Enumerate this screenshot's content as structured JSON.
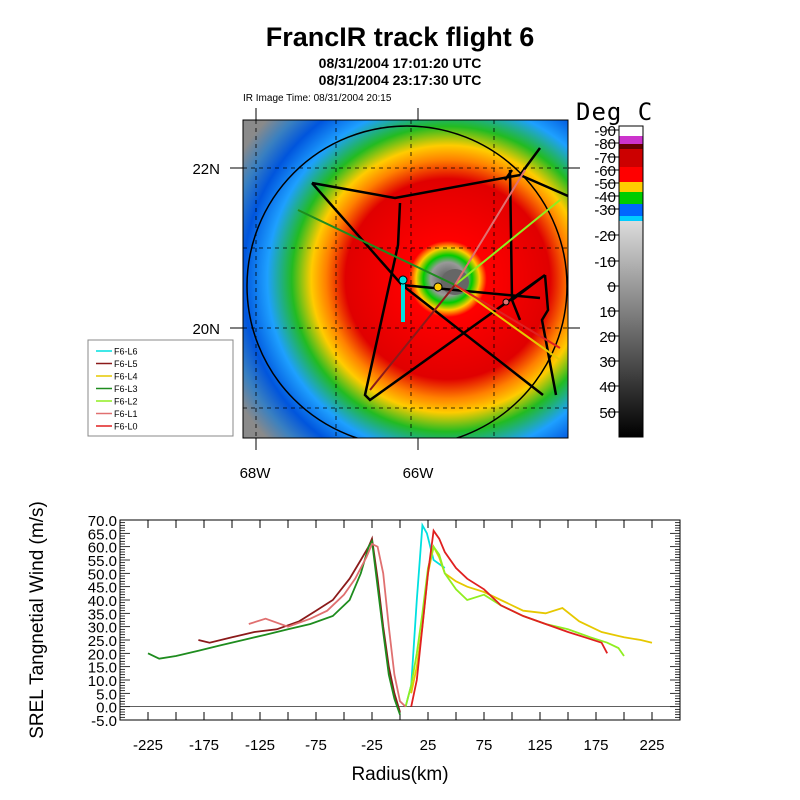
{
  "header": {
    "title": "FrancIR track flight 6",
    "time_start": "08/31/2004 17:01:20 UTC",
    "time_end": "08/31/2004 23:17:30 UTC",
    "ir_image_time": "IR Image Time: 08/31/2004 20:15"
  },
  "map": {
    "lat_labels": [
      "22N",
      "20N"
    ],
    "lon_labels": [
      "68W",
      "66W"
    ],
    "colorbar": {
      "title": "Deg C",
      "labels": [
        "-90",
        "-80",
        "-70",
        "-60",
        "-50",
        "-40",
        "-30",
        "-20",
        "-10",
        "0",
        "10",
        "20",
        "30",
        "40",
        "50"
      ],
      "colors": [
        "#ffffff",
        "#cc33cc",
        "#660000",
        "#cc0000",
        "#ff0000",
        "#ffcc00",
        "#00cc00",
        "#0066ff",
        "#00ccff"
      ]
    },
    "legend": [
      {
        "label": "F6-L6",
        "color": "#00e0e0"
      },
      {
        "label": "F6-L5",
        "color": "#8b1a1a"
      },
      {
        "label": "F6-L4",
        "color": "#e6c800"
      },
      {
        "label": "F6-L3",
        "color": "#1e8c1e"
      },
      {
        "label": "F6-L2",
        "color": "#90ee20"
      },
      {
        "label": "F6-L1",
        "color": "#e07070"
      },
      {
        "label": "F6-L0",
        "color": "#e02020"
      }
    ]
  },
  "chart_data": {
    "type": "line",
    "xlabel": "Radius(km)",
    "ylabel": "SREL Tangnetial Wind (m/s)",
    "xlim": [
      -250,
      250
    ],
    "ylim": [
      -5,
      70
    ],
    "xticks": [
      "-225",
      "-175",
      "-125",
      "-75",
      "-25",
      "25",
      "75",
      "125",
      "175",
      "225"
    ],
    "yticks": [
      "70.0",
      "65.0",
      "60.0",
      "55.0",
      "50.0",
      "45.0",
      "40.0",
      "35.0",
      "30.0",
      "25.0",
      "20.0",
      "15.0",
      "10.0",
      "5.0",
      "0.0",
      "-5.0"
    ],
    "series": [
      {
        "name": "F6-L6",
        "color": "#00e0e0",
        "x": [
          5,
          10,
          15,
          20,
          24,
          30,
          40
        ],
        "y": [
          0,
          8,
          40,
          68,
          65,
          55,
          52
        ]
      },
      {
        "name": "F6-L5",
        "color": "#8b1a1a",
        "x": [
          -180,
          -170,
          -150,
          -130,
          -110,
          -90,
          -75,
          -60,
          -45,
          -35,
          -28,
          -25,
          -20,
          -15,
          -10,
          -5,
          0
        ],
        "y": [
          25,
          24,
          26,
          28,
          29,
          32,
          36,
          40,
          48,
          55,
          60,
          63,
          48,
          30,
          15,
          5,
          -2
        ]
      },
      {
        "name": "F6-L4",
        "color": "#e6c800",
        "x": [
          10,
          15,
          20,
          25,
          30,
          35,
          40,
          50,
          60,
          75,
          90,
          110,
          130,
          145,
          160,
          180,
          200,
          215,
          225
        ],
        "y": [
          5,
          15,
          30,
          50,
          60,
          56,
          50,
          47,
          45,
          43,
          40,
          36,
          35,
          37,
          32,
          28,
          26,
          25,
          24
        ]
      },
      {
        "name": "F6-L3",
        "color": "#1e8c1e",
        "x": [
          -225,
          -215,
          -200,
          -180,
          -160,
          -140,
          -120,
          -100,
          -80,
          -60,
          -45,
          -35,
          -28,
          -25,
          -20,
          -15,
          -10,
          -5,
          0
        ],
        "y": [
          20,
          18,
          19,
          21,
          23,
          25,
          27,
          29,
          31,
          34,
          40,
          50,
          60,
          62,
          45,
          28,
          12,
          3,
          -3
        ]
      },
      {
        "name": "F6-L2",
        "color": "#90ee20",
        "x": [
          5,
          10,
          15,
          20,
          25,
          30,
          35,
          40,
          50,
          60,
          75,
          90,
          110,
          130,
          150,
          170,
          185,
          195,
          200
        ],
        "y": [
          0,
          8,
          20,
          35,
          52,
          60,
          57,
          50,
          44,
          40,
          42,
          38,
          34,
          31,
          29,
          26,
          24,
          22,
          19
        ]
      },
      {
        "name": "F6-L1",
        "color": "#e07070",
        "x": [
          -135,
          -120,
          -100,
          -80,
          -65,
          -50,
          -40,
          -30,
          -25,
          -20,
          -15,
          -10,
          -5,
          0,
          5
        ],
        "y": [
          31,
          33,
          30,
          33,
          36,
          42,
          48,
          56,
          61,
          60,
          50,
          30,
          12,
          2,
          0
        ]
      },
      {
        "name": "F6-L0",
        "color": "#e02020",
        "x": [
          10,
          15,
          20,
          25,
          30,
          35,
          40,
          50,
          60,
          75,
          90,
          110,
          130,
          150,
          165,
          180,
          185
        ],
        "y": [
          0,
          10,
          30,
          50,
          66,
          63,
          58,
          52,
          48,
          44,
          38,
          34,
          31,
          28,
          26,
          24,
          20
        ]
      }
    ]
  }
}
